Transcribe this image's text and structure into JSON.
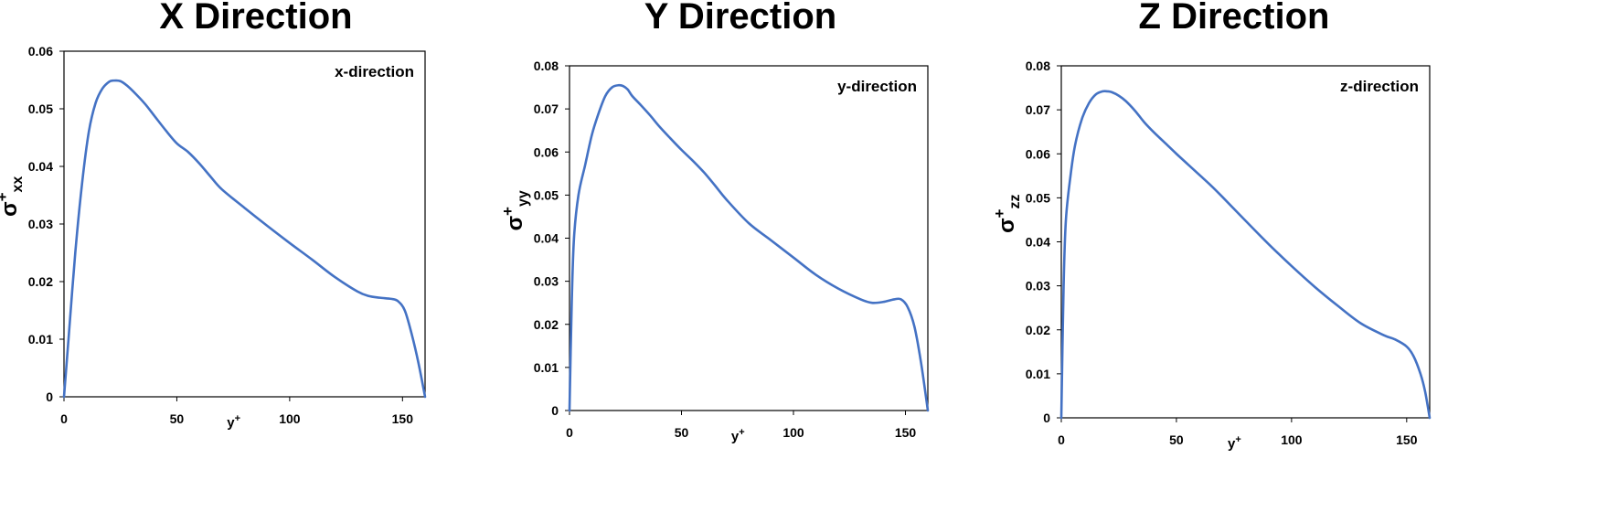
{
  "chart_data": [
    {
      "type": "line",
      "title": "X Direction",
      "annotation": "x-direction",
      "xlabel": "y+",
      "ylabel": "σ+xx",
      "xlim": [
        0,
        160
      ],
      "ylim": [
        0,
        0.06
      ],
      "xticks": [
        "0",
        "50",
        "100",
        "150"
      ],
      "yticks": [
        "0",
        "0.01",
        "0.02",
        "0.03",
        "0.04",
        "0.05",
        "0.06"
      ],
      "grid": false,
      "line_color": "#4472C4",
      "series": [
        {
          "x": [
            0,
            2,
            5,
            8,
            11,
            14,
            17,
            20,
            22,
            25,
            28,
            32,
            36,
            40,
            45,
            50,
            55,
            60,
            65,
            70,
            80,
            90,
            100,
            110,
            120,
            130,
            135,
            140,
            145,
            148,
            151,
            154,
            157,
            160
          ],
          "y": [
            0,
            0.01,
            0.025,
            0.037,
            0.046,
            0.051,
            0.0535,
            0.0547,
            0.0549,
            0.0548,
            0.054,
            0.0525,
            0.0508,
            0.0488,
            0.0463,
            0.044,
            0.0425,
            0.0405,
            0.0382,
            0.036,
            0.0328,
            0.0297,
            0.0267,
            0.0238,
            0.0208,
            0.0183,
            0.0175,
            0.0172,
            0.017,
            0.0166,
            0.015,
            0.011,
            0.006,
            0
          ]
        }
      ]
    },
    {
      "type": "line",
      "title": "Y Direction",
      "annotation": "y-direction",
      "xlabel": "y+",
      "ylabel": "σ+yy",
      "xlim": [
        0,
        160
      ],
      "ylim": [
        0,
        0.08
      ],
      "xticks": [
        "0",
        "50",
        "100",
        "150"
      ],
      "yticks": [
        "0",
        "0.01",
        "0.02",
        "0.03",
        "0.04",
        "0.05",
        "0.06",
        "0.07",
        "0.08"
      ],
      "grid": false,
      "line_color": "#4472C4",
      "series": [
        {
          "x": [
            0,
            1,
            2,
            4,
            7,
            10,
            13,
            16,
            19,
            22,
            24,
            26,
            28,
            32,
            36,
            40,
            45,
            50,
            55,
            60,
            65,
            70,
            80,
            90,
            100,
            110,
            120,
            130,
            135,
            140,
            145,
            148,
            151,
            154,
            157,
            160
          ],
          "y": [
            0,
            0.025,
            0.04,
            0.05,
            0.057,
            0.064,
            0.069,
            0.073,
            0.075,
            0.0755,
            0.0753,
            0.0745,
            0.073,
            0.0708,
            0.0685,
            0.066,
            0.0632,
            0.0605,
            0.058,
            0.0553,
            0.0522,
            0.049,
            0.0435,
            0.0395,
            0.0355,
            0.0315,
            0.0283,
            0.0258,
            0.025,
            0.0252,
            0.0258,
            0.0258,
            0.024,
            0.0195,
            0.011,
            0
          ]
        }
      ]
    },
    {
      "type": "line",
      "title": "Z Direction",
      "annotation": "z-direction",
      "xlabel": "y+",
      "ylabel": "σ+zz",
      "xlim": [
        0,
        160
      ],
      "ylim": [
        0,
        0.08
      ],
      "xticks": [
        "0",
        "50",
        "100",
        "150"
      ],
      "yticks": [
        "0",
        "0.01",
        "0.02",
        "0.03",
        "0.04",
        "0.05",
        "0.06",
        "0.07",
        "0.08"
      ],
      "grid": false,
      "line_color": "#4472C4",
      "series": [
        {
          "x": [
            0,
            1,
            2,
            4,
            6,
            9,
            12,
            15,
            18,
            20,
            22,
            25,
            28,
            32,
            36,
            40,
            45,
            50,
            55,
            60,
            65,
            70,
            80,
            90,
            100,
            110,
            120,
            130,
            140,
            145,
            150,
            153,
            156,
            158,
            160
          ],
          "y": [
            0,
            0.03,
            0.045,
            0.055,
            0.062,
            0.068,
            0.0715,
            0.0735,
            0.0742,
            0.0742,
            0.074,
            0.0732,
            0.072,
            0.0698,
            0.0672,
            0.065,
            0.0625,
            0.06,
            0.0576,
            0.0552,
            0.0528,
            0.0502,
            0.0448,
            0.0395,
            0.0345,
            0.0298,
            0.0255,
            0.0215,
            0.0188,
            0.0178,
            0.0162,
            0.014,
            0.01,
            0.006,
            0
          ]
        }
      ]
    }
  ]
}
